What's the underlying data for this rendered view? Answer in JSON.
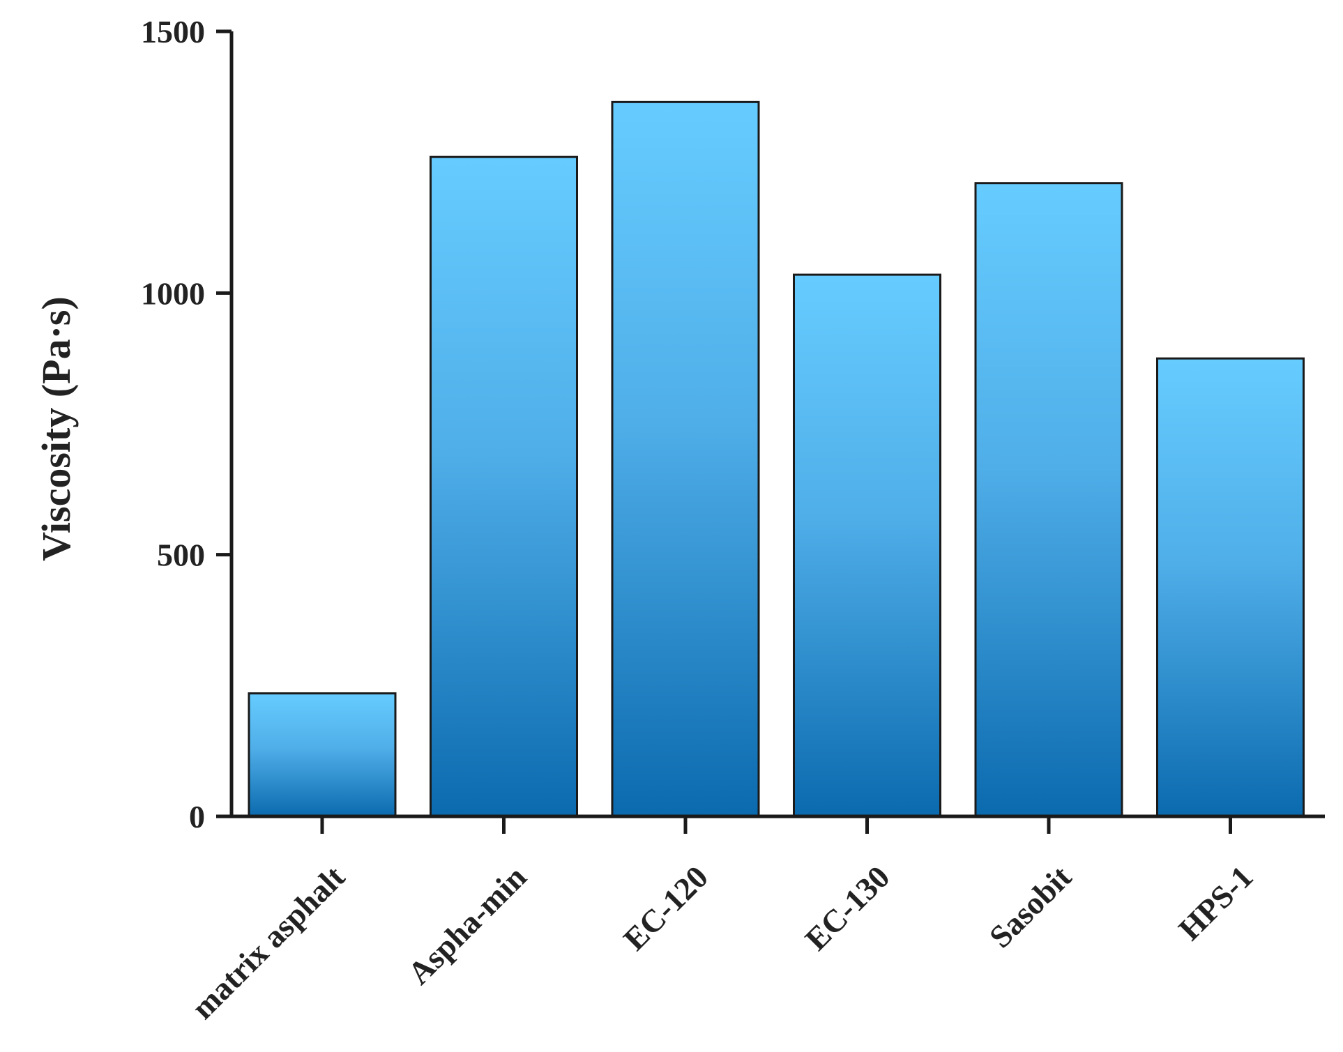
{
  "chart_data": {
    "type": "bar",
    "title": "",
    "xlabel": "",
    "ylabel": "Viscosity (Pa·s)",
    "categories": [
      "matrix asphalt",
      "Aspha-min",
      "EC-120",
      "EC-130",
      "Sasobit",
      "HPS-1"
    ],
    "values": [
      235,
      1260,
      1365,
      1035,
      1210,
      875
    ],
    "ylim": [
      0,
      1500
    ],
    "yticks": [
      0,
      500,
      1000,
      1500
    ],
    "ytick_labels": [
      "0",
      "500",
      "1000",
      "1500"
    ],
    "grid": false,
    "legend": "none",
    "bar_gradient": {
      "top": "#66CCFF",
      "bottom": "#0B6AAE"
    }
  }
}
